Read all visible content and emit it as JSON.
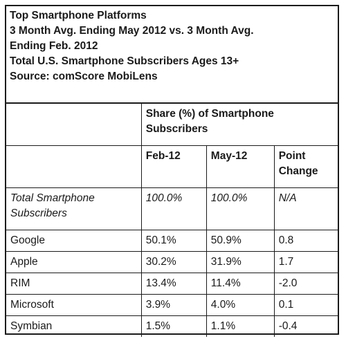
{
  "chart_data": {
    "type": "table",
    "title_lines": [
      "Top Smartphone Platforms",
      "3 Month Avg. Ending May 2012 vs. 3 Month Avg.",
      "Ending Feb. 2012",
      "Total U.S. Smartphone Subscribers Ages 13+",
      "Source: comScore MobiLens"
    ],
    "group_header": "Share (%) of Smartphone Subscribers",
    "columns": [
      "Feb-12",
      "May-12",
      "Point Change"
    ],
    "total_row": {
      "label": "Total Smartphone Subscribers",
      "values": [
        "100.0%",
        "100.0%",
        "N/A"
      ]
    },
    "rows": [
      {
        "label": "Google",
        "values": [
          "50.1%",
          "50.9%",
          "0.8"
        ]
      },
      {
        "label": "Apple",
        "values": [
          "30.2%",
          "31.9%",
          "1.7"
        ]
      },
      {
        "label": "RIM",
        "values": [
          "13.4%",
          "11.4%",
          "-2.0"
        ]
      },
      {
        "label": "Microsoft",
        "values": [
          "3.9%",
          "4.0%",
          "0.1"
        ]
      },
      {
        "label": "Symbian",
        "values": [
          "1.5%",
          "1.1%",
          "-0.4"
        ]
      }
    ]
  }
}
